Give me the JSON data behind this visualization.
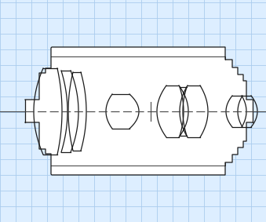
{
  "bg_color": "#ddeeff",
  "grid_color": "#aaccee",
  "lens_bg": "#ffffff",
  "line_color": "#1a1a1a",
  "figsize": [
    3.39,
    2.83
  ],
  "dpi": 100,
  "xlim": [
    0,
    339
  ],
  "ylim": [
    0,
    283
  ]
}
